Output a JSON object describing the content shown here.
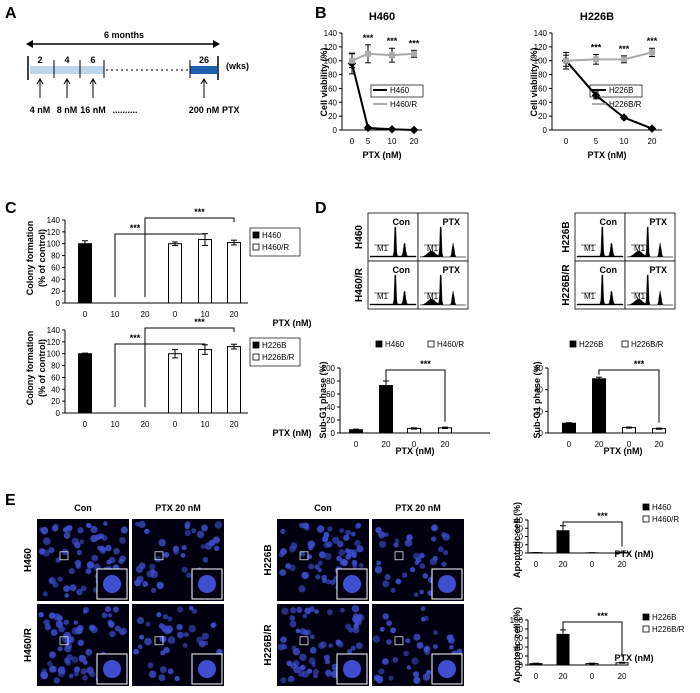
{
  "panels": {
    "A": "A",
    "B": "B",
    "C": "C",
    "D": "D",
    "E": "E"
  },
  "panelA": {
    "duration": "6 months",
    "units": "(wks)",
    "weeks": [
      "2",
      "4",
      "6",
      "26"
    ],
    "doses": [
      "4 nM",
      "8 nM",
      "16 nM",
      "200 nM"
    ],
    "dots": "..........",
    "drug": "PTX"
  },
  "chart_data": [
    {
      "id": "B-H460",
      "type": "line",
      "title": "H460",
      "xlabel": "PTX (nM)",
      "ylabel": "Cell viability (%)",
      "categories": [
        "0",
        "5",
        "10",
        "20"
      ],
      "ylim": [
        0,
        140
      ],
      "yticks": [
        "0",
        "20",
        "40",
        "60",
        "80",
        "100",
        "120",
        "140"
      ],
      "series": [
        {
          "name": "H460",
          "values": [
            96,
            3,
            1,
            0
          ],
          "errors": [
            15,
            2,
            1,
            1
          ],
          "color": "#000000"
        },
        {
          "name": "H460/R",
          "values": [
            100,
            110,
            108,
            110
          ],
          "errors": [
            10,
            13,
            10,
            5
          ],
          "color": "#aaaaaa"
        }
      ],
      "annotations": [
        "***",
        "***",
        "***"
      ]
    },
    {
      "id": "B-H226B",
      "type": "line",
      "title": "H226B",
      "xlabel": "PTX (nM)",
      "ylabel": "Cell viability (%)",
      "categories": [
        "0",
        "5",
        "10",
        "20"
      ],
      "ylim": [
        0,
        140
      ],
      "yticks": [
        "0",
        "20",
        "40",
        "60",
        "80",
        "100",
        "120",
        "140"
      ],
      "series": [
        {
          "name": "H226B",
          "values": [
            100,
            50,
            18,
            2
          ],
          "errors": [
            12,
            5,
            2,
            1
          ],
          "color": "#000000"
        },
        {
          "name": "H226B/R",
          "values": [
            100,
            102,
            102,
            112
          ],
          "errors": [
            8,
            7,
            5,
            6
          ],
          "color": "#aaaaaa"
        }
      ],
      "annotations": [
        "***",
        "***",
        "***"
      ]
    },
    {
      "id": "C-H460",
      "type": "bar",
      "xlabel": "PTX (nM)",
      "ylabel": "Colony formation (% of control)",
      "categories": [
        "0",
        "10",
        "20",
        "0",
        "10",
        "20"
      ],
      "ylim": [
        0,
        140
      ],
      "yticks": [
        "0",
        "20",
        "40",
        "60",
        "80",
        "100",
        "120",
        "140"
      ],
      "values": [
        100,
        0,
        0,
        100,
        107,
        102
      ],
      "errors": [
        5,
        0,
        0,
        3,
        10,
        4
      ],
      "bar_groups": [
        "H460",
        "H460",
        "H460",
        "H460/R",
        "H460/R",
        "H460/R"
      ],
      "legend": [
        "H460",
        "H460/R"
      ],
      "annotations": [
        "***",
        "***"
      ]
    },
    {
      "id": "C-H226B",
      "type": "bar",
      "xlabel": "PTX (nM)",
      "ylabel": "Colony formation (% of control)",
      "categories": [
        "0",
        "10",
        "20",
        "0",
        "10",
        "20"
      ],
      "ylim": [
        0,
        140
      ],
      "yticks": [
        "0",
        "20",
        "40",
        "60",
        "80",
        "100",
        "120",
        "140"
      ],
      "values": [
        100,
        0,
        0,
        100,
        107,
        112
      ],
      "errors": [
        1,
        0,
        0,
        7,
        8,
        4
      ],
      "bar_groups": [
        "H226B",
        "H226B",
        "H226B",
        "H226B/R",
        "H226B/R",
        "H226B/R"
      ],
      "legend": [
        "H226B",
        "H226B/R"
      ],
      "annotations": [
        "***",
        "***"
      ]
    },
    {
      "id": "D-H460",
      "type": "bar",
      "xlabel": "PTX (nM)",
      "ylabel": "Sub-G1 phase (%)",
      "categories": [
        "0",
        "20",
        "0",
        "20"
      ],
      "ylim": [
        0,
        100
      ],
      "yticks": [
        "0",
        "20",
        "40",
        "60",
        "80",
        "100"
      ],
      "values": [
        5,
        73,
        7,
        8
      ],
      "errors": [
        1,
        7,
        1,
        1
      ],
      "bar_groups": [
        "H460",
        "H460",
        "H460/R",
        "H460/R"
      ],
      "legend": [
        "H460",
        "H460/R"
      ],
      "annotations": [
        "***"
      ]
    },
    {
      "id": "D-H226B",
      "type": "bar",
      "xlabel": "PTX (nM)",
      "ylabel": "Sub-G1 phase (%)",
      "categories": [
        "0",
        "20",
        "0",
        "20"
      ],
      "ylim": [
        0,
        60
      ],
      "yticks": [
        "0",
        "20",
        "40",
        "60"
      ],
      "values": [
        9,
        50,
        5,
        4
      ],
      "errors": [
        0.5,
        1.5,
        0.5,
        0.5
      ],
      "bar_groups": [
        "H226B",
        "H226B",
        "H226B/R",
        "H226B/R"
      ],
      "legend": [
        "H226B",
        "H226B/R"
      ],
      "annotations": [
        "***"
      ]
    },
    {
      "id": "E-H460",
      "type": "bar",
      "xlabel": "PTX (nM)",
      "ylabel": "Apoptotic cell (%)",
      "categories": [
        "0",
        "20",
        "0",
        "20"
      ],
      "ylim": [
        0,
        40
      ],
      "yticks": [
        "0",
        "10",
        "20",
        "30",
        "40"
      ],
      "values": [
        0.4,
        27,
        0.2,
        0.5
      ],
      "errors": [
        0.2,
        6,
        0.1,
        0.3
      ],
      "bar_groups": [
        "H460",
        "H460",
        "H460/R",
        "H460/R"
      ],
      "legend": [
        "H460",
        "H460/R"
      ],
      "annotations": [
        "***"
      ]
    },
    {
      "id": "E-H226B",
      "type": "bar",
      "xlabel": "PTX (nM)",
      "ylabel": "Apoptotic cell (%)",
      "categories": [
        "0",
        "20",
        "0",
        "20"
      ],
      "ylim": [
        0,
        100
      ],
      "yticks": [
        "0",
        "20",
        "40",
        "60",
        "80",
        "100"
      ],
      "values": [
        3,
        68,
        3,
        5
      ],
      "errors": [
        1,
        10,
        1,
        1
      ],
      "bar_groups": [
        "H226B",
        "H226B",
        "H226B/R",
        "H226B/R"
      ],
      "legend": [
        "H226B",
        "H226B/R"
      ],
      "annotations": [
        "***"
      ]
    }
  ],
  "flow": {
    "left": {
      "col_labels": [
        "Con",
        "PTX"
      ],
      "row_labels": [
        "H460",
        "H460/R"
      ]
    },
    "right": {
      "col_labels": [
        "Con",
        "PTX"
      ],
      "row_labels": [
        "H226B",
        "H226B/R"
      ]
    },
    "marker": "M1"
  },
  "micro": {
    "left": {
      "col_labels": [
        "Con",
        "PTX 20 nM"
      ],
      "row_labels": [
        "H460",
        "H460/R"
      ]
    },
    "right": {
      "col_labels": [
        "Con",
        "PTX 20 nM"
      ],
      "row_labels": [
        "H226B",
        "H226B/R"
      ]
    }
  },
  "colors": {
    "black_bar": "#000000",
    "white_bar": "#ffffff",
    "gray_line": "#aaaaaa",
    "blue_light": "#bfd7ee",
    "blue_dark": "#1f5fb0",
    "micro_bg": "#000010",
    "nuclei": "#3d4fcf"
  }
}
